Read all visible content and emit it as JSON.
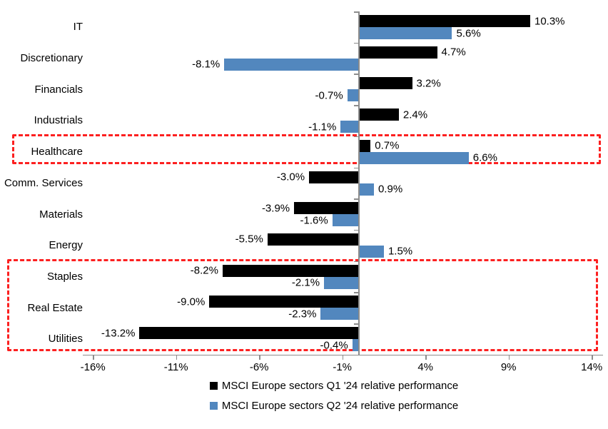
{
  "chart_data": {
    "type": "bar",
    "orientation": "horizontal",
    "title": "",
    "xlabel": "",
    "ylabel": "",
    "grid": false,
    "legend_position": "bottom",
    "categories": [
      "IT",
      "Discretionary",
      "Financials",
      "Industrials",
      "Healthcare",
      "Comm. Services",
      "Materials",
      "Energy",
      "Staples",
      "Real Estate",
      "Utilities"
    ],
    "series": [
      {
        "name": "MSCI Europe sectors Q1 '24 relative performance",
        "color": "#000000",
        "values": [
          10.3,
          4.7,
          3.2,
          2.4,
          0.7,
          -3.0,
          -3.9,
          -5.5,
          -8.2,
          -9.0,
          -13.2
        ],
        "value_labels": [
          "10.3%",
          "4.7%",
          "3.2%",
          "2.4%",
          "0.7%",
          "-3.0%",
          "-3.9%",
          "-5.5%",
          "-8.2%",
          "-9.0%",
          "-13.2%"
        ]
      },
      {
        "name": "MSCI Europe sectors Q2 '24 relative performance",
        "color": "#5287be",
        "values": [
          5.6,
          -8.1,
          -0.7,
          -1.1,
          6.6,
          0.9,
          -1.6,
          1.5,
          -2.1,
          -2.3,
          -0.4
        ],
        "value_labels": [
          "5.6%",
          "-8.1%",
          "-0.7%",
          "-1.1%",
          "6.6%",
          "0.9%",
          "-1.6%",
          "1.5%",
          "-2.1%",
          "-2.3%",
          "-0.4%"
        ]
      }
    ],
    "x_axis": {
      "min": -16,
      "max": 14,
      "ticks": [
        -16,
        -11,
        -6,
        -1,
        4,
        9,
        14
      ],
      "tick_labels": [
        "-16%",
        "-11%",
        "-6%",
        "-1%",
        "4%",
        "9%",
        "14%"
      ]
    },
    "highlights": [
      {
        "name": "healthcare-highlight",
        "start_row": 4,
        "end_row": 4,
        "color": "#fc2020"
      },
      {
        "name": "defensives-highlight",
        "start_row": 8,
        "end_row": 10,
        "color": "#fc2020"
      }
    ]
  },
  "colors": {
    "q1_bar": "#000000",
    "q2_bar": "#5287be",
    "highlight_red": "#fc2020",
    "axis_gray": "#8c8c8c",
    "text": "#000000",
    "background": "#ffffff"
  }
}
